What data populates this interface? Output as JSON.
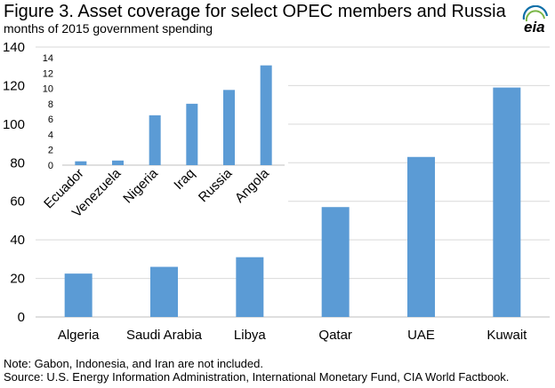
{
  "header": {
    "title": "Figure 3. Asset coverage for select OPEC members and Russia",
    "subtitle": "months of 2015 government spending",
    "logo_text": "eia"
  },
  "notes": {
    "note": "Note: Gabon, Indonesia, and Iran are not included.",
    "source": "Source: U.S. Energy Information Administration, International Monetary Fund, CIA World Factbook."
  },
  "colors": {
    "bar": "#5b9bd5",
    "grid": "#d9d9d9",
    "axis": "#bfbfbf",
    "logo_blue": "#0f6fa8",
    "logo_green": "#7ab648"
  },
  "chart_data": [
    {
      "type": "bar",
      "title": "",
      "xlabel": "",
      "ylabel": "",
      "categories": [
        "Algeria",
        "Saudi Arabia",
        "Libya",
        "Qatar",
        "UAE",
        "Kuwait"
      ],
      "values": [
        22.5,
        26,
        31,
        57,
        83,
        119
      ],
      "ylim": [
        0,
        140
      ],
      "yticks": [
        0,
        20,
        40,
        60,
        80,
        100,
        120,
        140
      ],
      "grid": true,
      "legend": "none"
    },
    {
      "type": "bar",
      "title": "",
      "xlabel": "",
      "ylabel": "",
      "categories": [
        "Ecuador",
        "Venezuela",
        "Nigeria",
        "Iraq",
        "Russia",
        "Angola"
      ],
      "values": [
        0.5,
        0.6,
        6.5,
        8,
        9.8,
        13
      ],
      "ylim": [
        0,
        14
      ],
      "yticks": [
        0,
        2,
        4,
        6,
        8,
        10,
        12,
        14
      ],
      "grid": false,
      "legend": "none",
      "placement": "inset top-left"
    }
  ]
}
